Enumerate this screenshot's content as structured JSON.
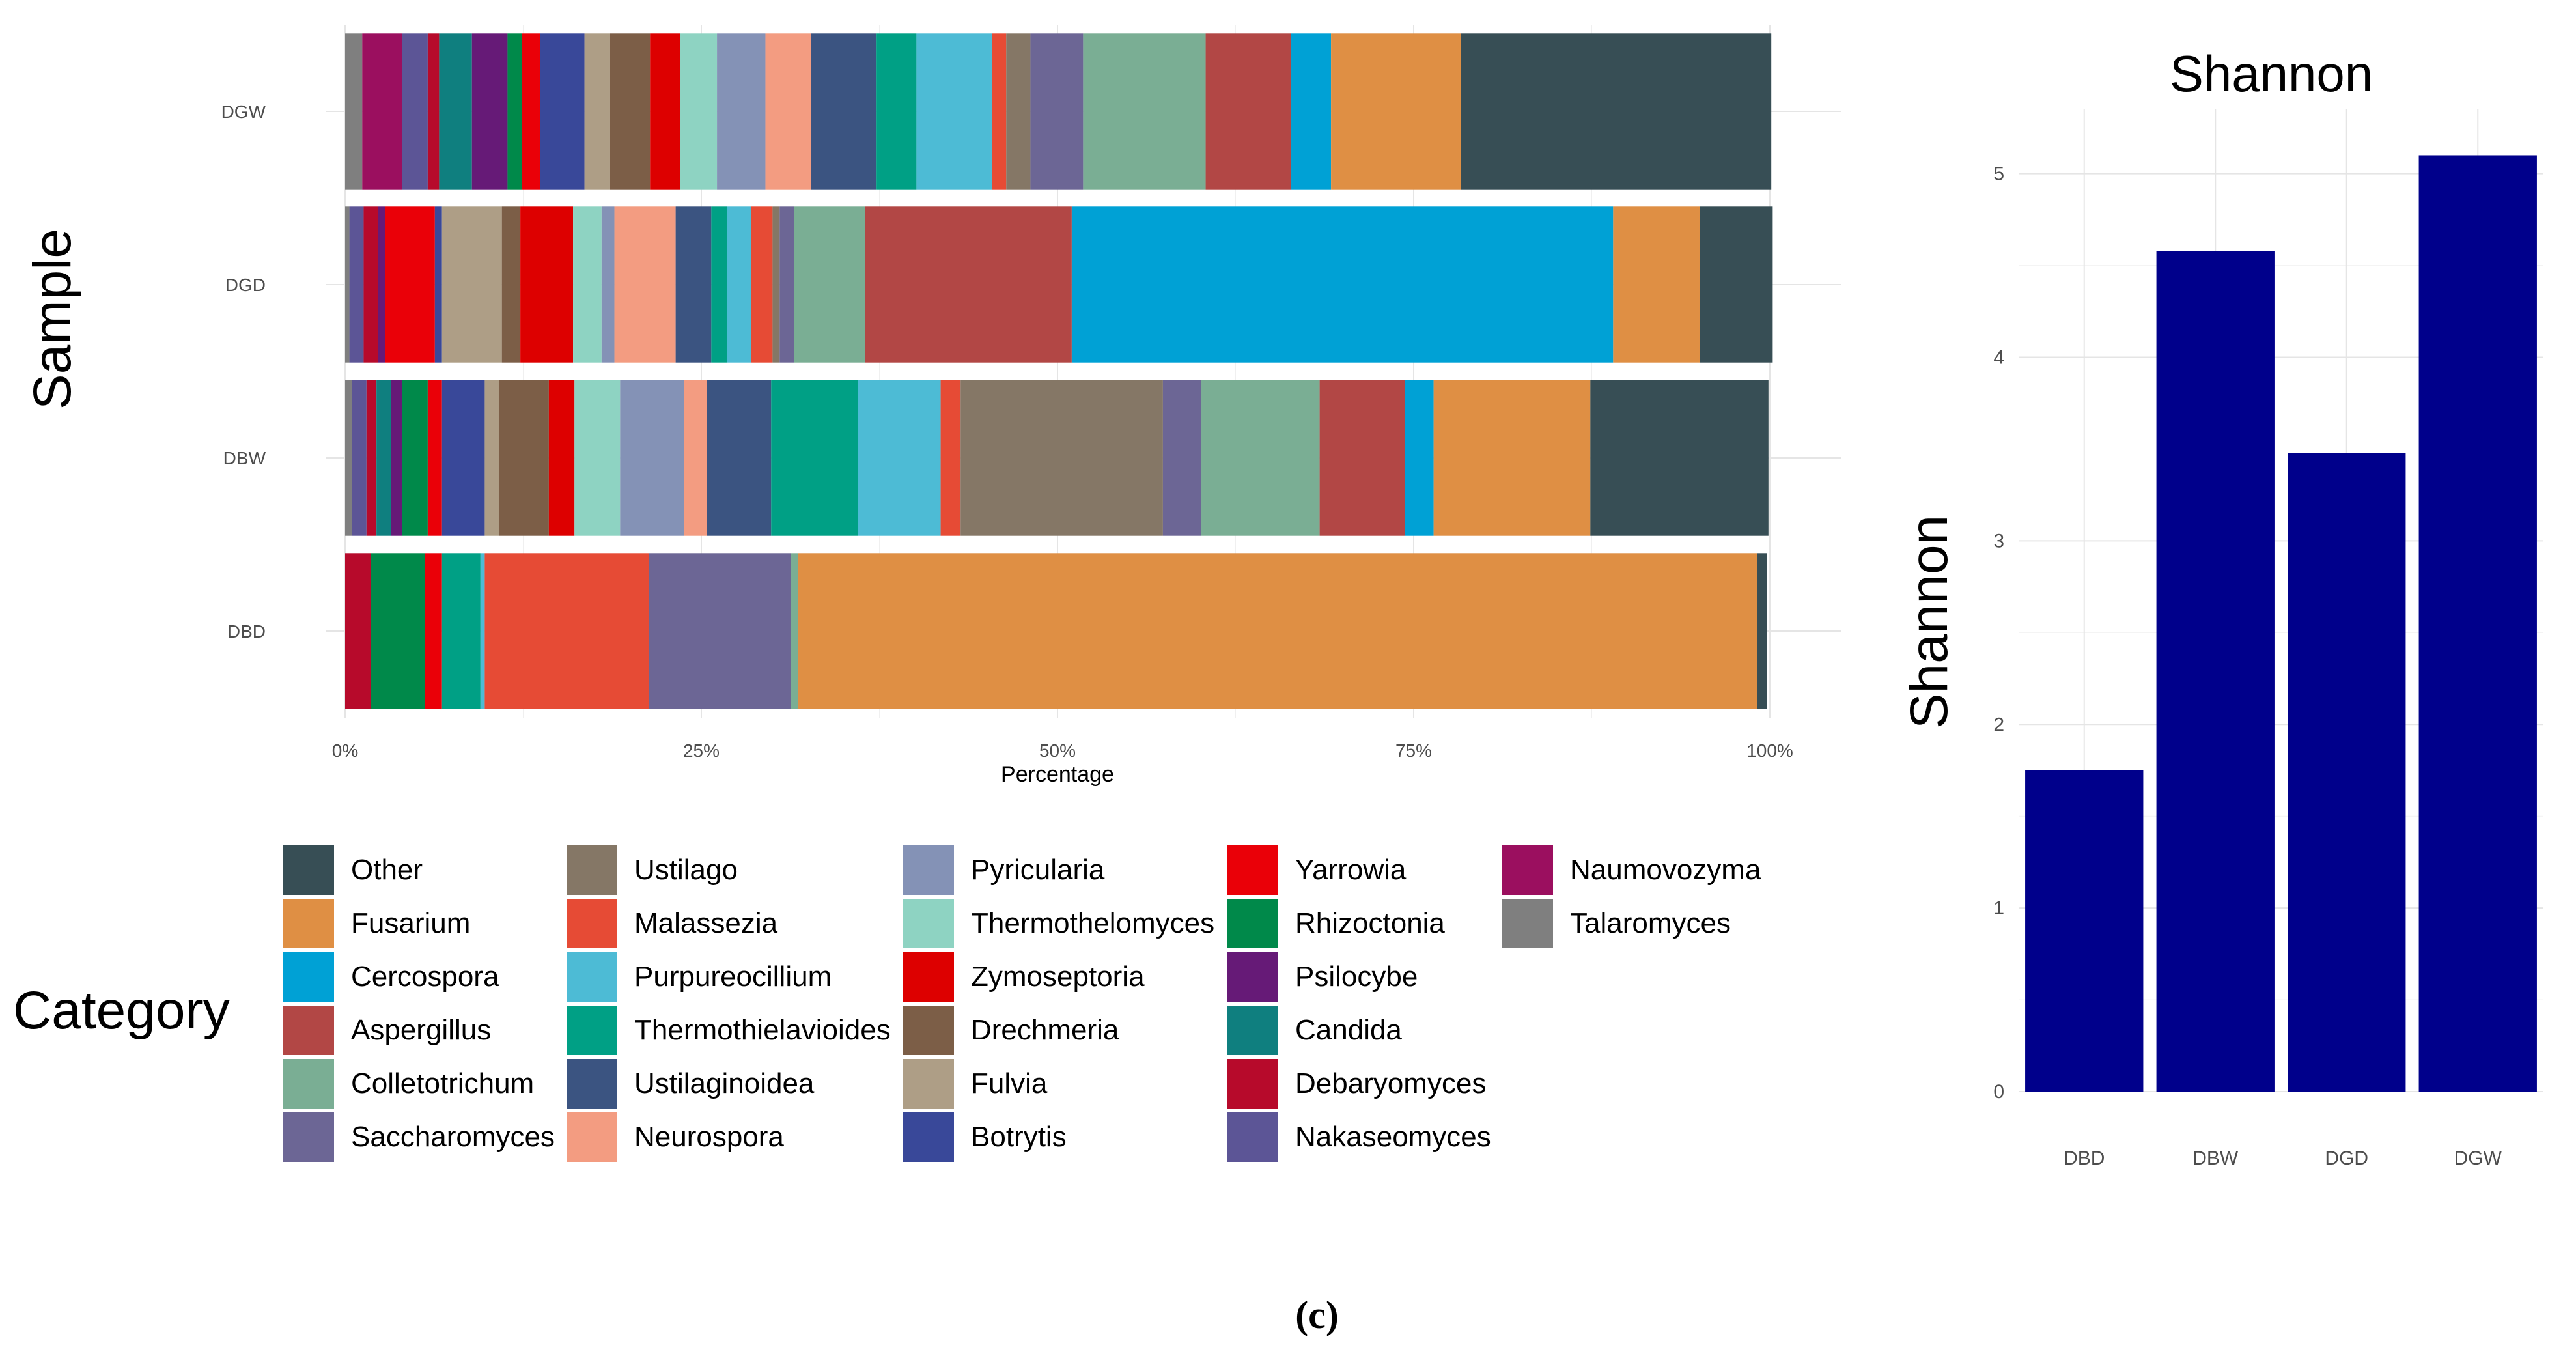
{
  "chart_data": [
    {
      "type": "bar",
      "orientation": "horizontal",
      "stacked": true,
      "ylabel": "Sample",
      "xlabel": "Percentage",
      "x_ticks": [
        "0%",
        "25%",
        "50%",
        "75%",
        "100%"
      ],
      "xlim": [
        0,
        100
      ],
      "categories": [
        "DGW",
        "DGD",
        "DBW",
        "DBD"
      ],
      "legend_title": "Category",
      "legend_position": "bottom-left",
      "series": [
        {
          "name": "Talaromyces",
          "color": "#7f7f7f",
          "values": [
            1.2,
            0.3,
            0.5,
            0.0
          ]
        },
        {
          "name": "Naumovozyma",
          "color": "#9b0f5f",
          "values": [
            2.8,
            0.0,
            0.0,
            0.0
          ]
        },
        {
          "name": "Nakaseomyces",
          "color": "#5c5596",
          "values": [
            1.8,
            1.0,
            1.0,
            0.0
          ]
        },
        {
          "name": "Debaryomyces",
          "color": "#b70a2b",
          "values": [
            0.8,
            1.0,
            0.7,
            1.8
          ]
        },
        {
          "name": "Candida",
          "color": "#0f7f7f",
          "values": [
            2.3,
            0.0,
            1.0,
            0.0
          ]
        },
        {
          "name": "Psilocybe",
          "color": "#661a77",
          "values": [
            2.5,
            0.5,
            0.8,
            0.0
          ]
        },
        {
          "name": "Rhizoctonia",
          "color": "#00894a",
          "values": [
            1.0,
            0.0,
            1.8,
            3.8
          ]
        },
        {
          "name": "Yarrowia",
          "color": "#ea0008",
          "values": [
            1.3,
            3.5,
            1.0,
            1.2
          ]
        },
        {
          "name": "Botrytis",
          "color": "#394899",
          "values": [
            3.1,
            0.5,
            3.0,
            0.0
          ]
        },
        {
          "name": "Fulvia",
          "color": "#ae9e86",
          "values": [
            1.8,
            4.2,
            1.0,
            0.0
          ]
        },
        {
          "name": "Drechmeria",
          "color": "#7c5e47",
          "values": [
            2.8,
            1.3,
            3.5,
            0.0
          ]
        },
        {
          "name": "Zymoseptoria",
          "color": "#dd0000",
          "values": [
            2.1,
            3.7,
            1.8,
            0.0
          ]
        },
        {
          "name": "Thermothelomyces",
          "color": "#8ed3c2",
          "values": [
            2.6,
            2.0,
            3.2,
            0.0
          ]
        },
        {
          "name": "Pyricularia",
          "color": "#8492b6",
          "values": [
            3.4,
            0.9,
            4.5,
            0.0
          ]
        },
        {
          "name": "Neurospora",
          "color": "#f39c81",
          "values": [
            3.2,
            4.3,
            1.6,
            0.0
          ]
        },
        {
          "name": "Ustilaginoidea",
          "color": "#3b5481",
          "values": [
            4.6,
            2.5,
            4.5,
            0.0
          ]
        },
        {
          "name": "Thermothielavioides",
          "color": "#00a085",
          "values": [
            2.8,
            1.1,
            6.1,
            2.7
          ]
        },
        {
          "name": "Purpureocillium",
          "color": "#4dbbd5",
          "values": [
            5.3,
            1.7,
            5.8,
            0.3
          ]
        },
        {
          "name": "Malassezia",
          "color": "#e64b35",
          "values": [
            1.0,
            1.5,
            1.4,
            11.5
          ]
        },
        {
          "name": "Ustilago",
          "color": "#857766",
          "values": [
            1.7,
            0.5,
            14.2,
            0.0
          ]
        },
        {
          "name": "Saccharomyces",
          "color": "#6c6695",
          "values": [
            3.7,
            1.0,
            2.7,
            10.0
          ]
        },
        {
          "name": "Colletotrichum",
          "color": "#7aae94",
          "values": [
            8.6,
            5.0,
            8.3,
            0.5
          ]
        },
        {
          "name": "Aspergillus",
          "color": "#b24745",
          "values": [
            6.0,
            14.5,
            6.0,
            0.0
          ]
        },
        {
          "name": "Cercospora",
          "color": "#00a1d5",
          "values": [
            2.8,
            38.0,
            2.0,
            0.0
          ]
        },
        {
          "name": "Fusarium",
          "color": "#df8f44",
          "values": [
            9.1,
            6.1,
            11.0,
            67.3
          ]
        },
        {
          "name": "Other",
          "color": "#374e55",
          "values": [
            21.8,
            5.1,
            12.5,
            0.7
          ]
        }
      ]
    },
    {
      "type": "bar",
      "title": "Shannon",
      "xlabel": "",
      "ylabel": "Shannon",
      "categories": [
        "DBD",
        "DBW",
        "DGD",
        "DGW"
      ],
      "values": [
        1.75,
        4.58,
        3.48,
        5.1
      ],
      "ylim": [
        0,
        5.35
      ],
      "y_ticks": [
        "0",
        "1",
        "2",
        "3",
        "4",
        "5"
      ],
      "color": "#00008b",
      "grid": true
    }
  ],
  "legend": {
    "title": "Category",
    "columns": [
      [
        "Other",
        "Fusarium",
        "Cercospora",
        "Aspergillus",
        "Colletotrichum",
        "Saccharomyces"
      ],
      [
        "Ustilago",
        "Malassezia",
        "Purpureocillium",
        "Thermothielavioides",
        "Ustilaginoidea",
        "Neurospora"
      ],
      [
        "Pyricularia",
        "Thermothelomyces",
        "Zymoseptoria",
        "Drechmeria",
        "Fulvia",
        "Botrytis"
      ],
      [
        "Yarrowia",
        "Rhizoctonia",
        "Psilocybe",
        "Candida",
        "Debaryomyces",
        "Nakaseomyces"
      ],
      [
        "Naumovozyma",
        "Talaromyces"
      ]
    ]
  },
  "panel_label": "(c)"
}
